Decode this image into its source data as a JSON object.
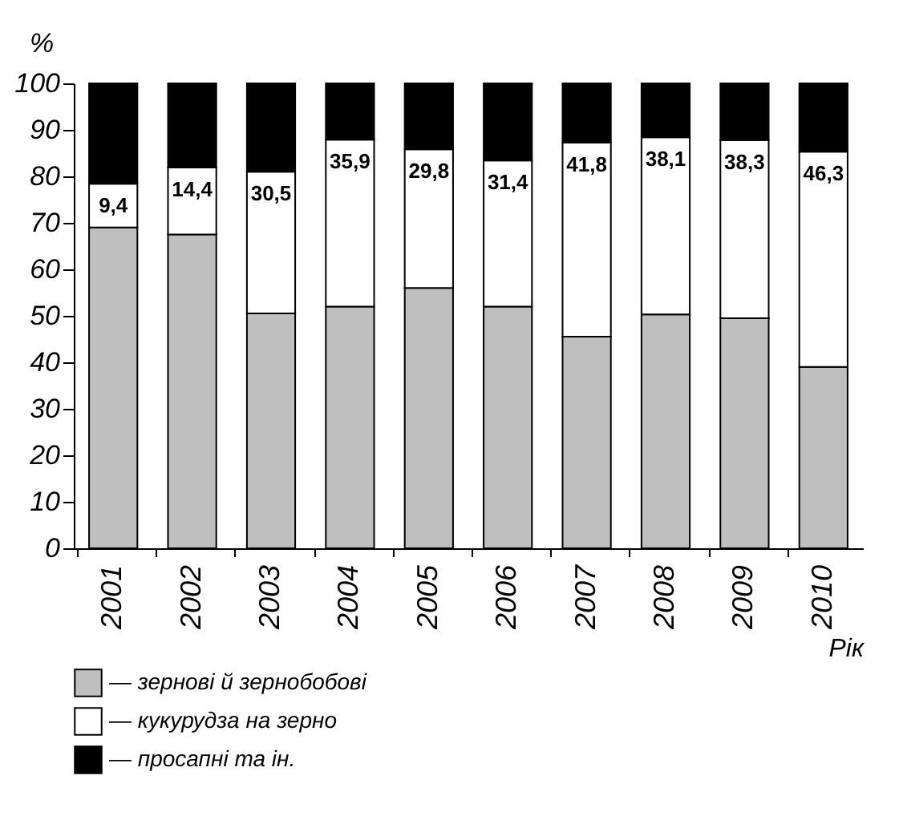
{
  "chart_data": {
    "type": "bar",
    "stacked": true,
    "ylabel": "%",
    "xlabel": "Рік",
    "categories": [
      "2001",
      "2002",
      "2003",
      "2004",
      "2005",
      "2006",
      "2007",
      "2008",
      "2009",
      "2010"
    ],
    "ylim": [
      0,
      100
    ],
    "yticks": [
      0,
      10,
      20,
      30,
      40,
      50,
      60,
      70,
      80,
      90,
      100
    ],
    "grid": false,
    "legend": "bottom",
    "series": [
      {
        "name": "— зернові й зернобобові",
        "color": "#bfbfbf",
        "values": [
          69.0,
          67.5,
          50.5,
          52.0,
          56.0,
          52.0,
          45.5,
          50.3,
          49.5,
          39.0
        ]
      },
      {
        "name": "— кукурудза на зерно",
        "color": "#ffffff",
        "values": [
          9.4,
          14.4,
          30.5,
          35.9,
          29.8,
          31.4,
          41.8,
          38.1,
          38.3,
          46.3
        ],
        "value_labels": [
          "9,4",
          "14,4",
          "30,5",
          "35,9",
          "29,8",
          "31,4",
          "41,8",
          "38,1",
          "38,3",
          "46,3"
        ]
      },
      {
        "name": "— просапні та ін.",
        "color": "#000000",
        "values": [
          21.6,
          18.1,
          19.0,
          12.1,
          14.2,
          16.6,
          12.7,
          11.6,
          12.2,
          14.7
        ]
      }
    ]
  }
}
